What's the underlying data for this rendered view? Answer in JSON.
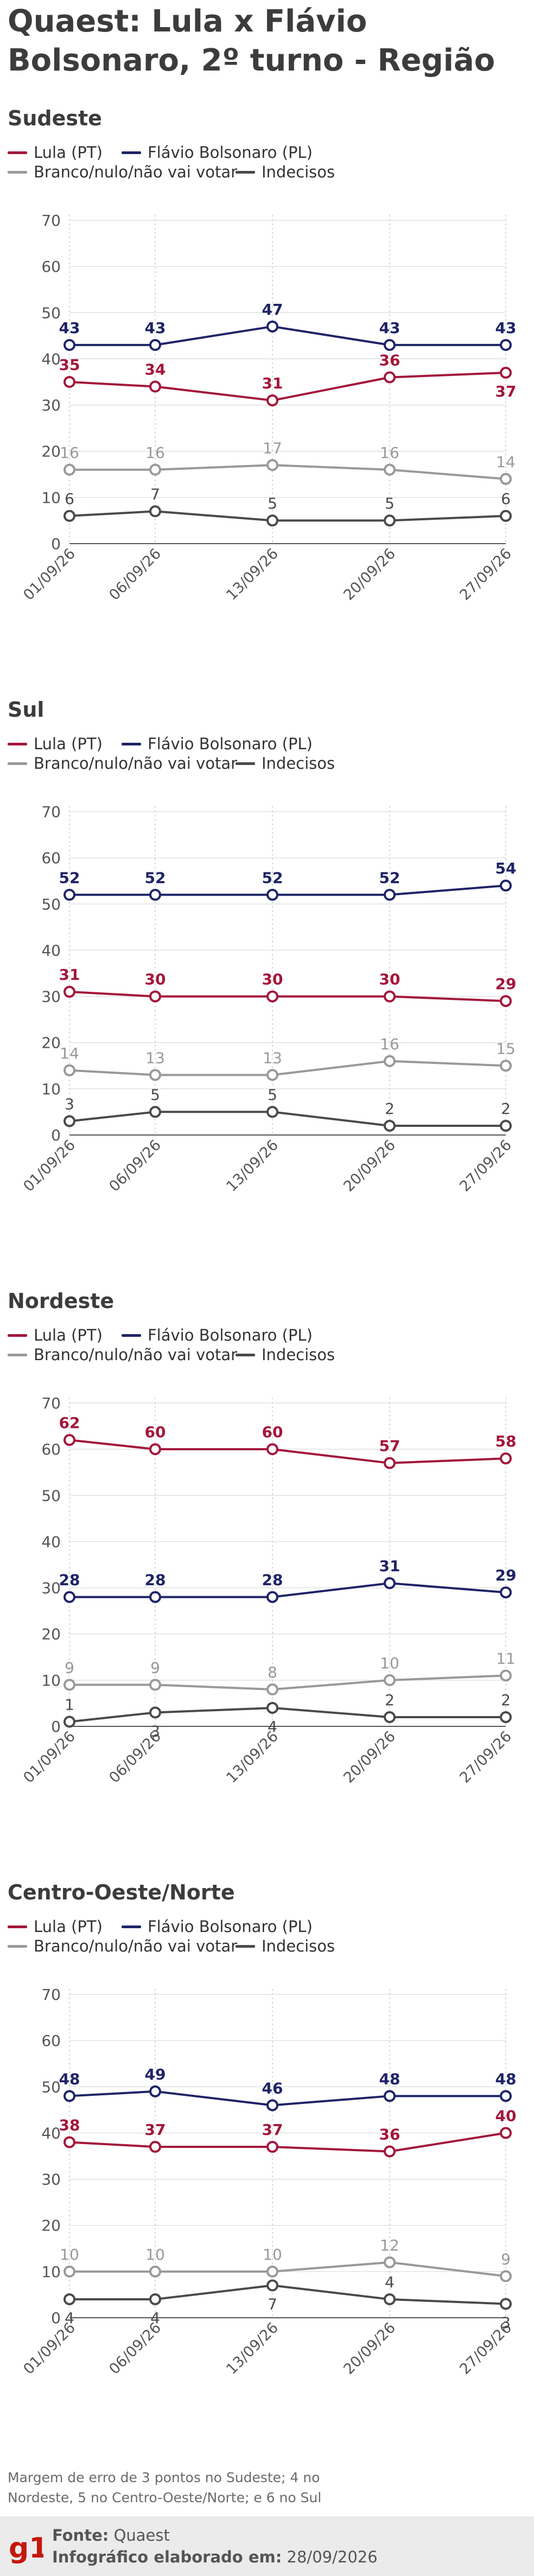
{
  "title": "Quaest: Lula x Flávio Bolsonaro, 2º turno - Região",
  "legend": [
    {
      "label": "Lula (PT)",
      "color": "#a3173a"
    },
    {
      "label": "Flávio Bolsonaro (PL)",
      "color": "#1e2466"
    },
    {
      "label": "Branco/nulo/não vai votar",
      "color": "#999999"
    },
    {
      "label": "Indecisos",
      "color": "#4a4a4a"
    }
  ],
  "chart_data": [
    {
      "type": "line",
      "title": "Sudeste",
      "x": [
        "01/09/26",
        "06/09/26",
        "13/09/26",
        "20/09/26",
        "27/09/26"
      ],
      "ylim": [
        0,
        70
      ],
      "yticks": [
        "0",
        "10",
        "20",
        "30",
        "40",
        "50",
        "60",
        "70"
      ],
      "series": [
        {
          "name": "Lula (PT)",
          "values": [
            35,
            34,
            31,
            36,
            37
          ]
        },
        {
          "name": "Flávio Bolsonaro (PL)",
          "values": [
            43,
            43,
            47,
            43,
            43
          ]
        },
        {
          "name": "Branco/nulo/não vai votar",
          "values": [
            16,
            16,
            17,
            16,
            14
          ]
        },
        {
          "name": "Indecisos",
          "values": [
            6,
            7,
            5,
            5,
            6
          ]
        }
      ]
    },
    {
      "type": "line",
      "title": "Sul",
      "x": [
        "01/09/26",
        "06/09/26",
        "13/09/26",
        "20/09/26",
        "27/09/26"
      ],
      "ylim": [
        0,
        70
      ],
      "yticks": [
        "0",
        "10",
        "20",
        "30",
        "40",
        "50",
        "60",
        "70"
      ],
      "series": [
        {
          "name": "Lula (PT)",
          "values": [
            31,
            30,
            30,
            30,
            29
          ]
        },
        {
          "name": "Flávio Bolsonaro (PL)",
          "values": [
            52,
            52,
            52,
            52,
            54
          ]
        },
        {
          "name": "Branco/nulo/não vai votar",
          "values": [
            14,
            13,
            13,
            16,
            15
          ]
        },
        {
          "name": "Indecisos",
          "values": [
            3,
            5,
            5,
            2,
            2
          ]
        }
      ]
    },
    {
      "type": "line",
      "title": "Nordeste",
      "x": [
        "01/09/26",
        "06/09/26",
        "13/09/26",
        "20/09/26",
        "27/09/26"
      ],
      "ylim": [
        0,
        70
      ],
      "yticks": [
        "0",
        "10",
        "20",
        "30",
        "40",
        "50",
        "60",
        "70"
      ],
      "series": [
        {
          "name": "Lula (PT)",
          "values": [
            62,
            60,
            60,
            57,
            58
          ]
        },
        {
          "name": "Flávio Bolsonaro (PL)",
          "values": [
            28,
            28,
            28,
            31,
            29
          ]
        },
        {
          "name": "Branco/nulo/não vai votar",
          "values": [
            9,
            9,
            8,
            10,
            11
          ]
        },
        {
          "name": "Indecisos",
          "values": [
            1,
            3,
            4,
            2,
            2
          ]
        }
      ]
    },
    {
      "type": "line",
      "title": "Centro-Oeste/Norte",
      "x": [
        "01/09/26",
        "06/09/26",
        "13/09/26",
        "20/09/26",
        "27/09/26"
      ],
      "ylim": [
        0,
        70
      ],
      "yticks": [
        "0",
        "10",
        "20",
        "30",
        "40",
        "50",
        "60",
        "70"
      ],
      "series": [
        {
          "name": "Lula (PT)",
          "values": [
            38,
            37,
            37,
            36,
            40
          ]
        },
        {
          "name": "Flávio Bolsonaro (PL)",
          "values": [
            48,
            49,
            46,
            48,
            48
          ]
        },
        {
          "name": "Branco/nulo/não vai votar",
          "values": [
            10,
            10,
            10,
            12,
            9
          ]
        },
        {
          "name": "Indecisos",
          "values": [
            4,
            4,
            7,
            4,
            3
          ]
        }
      ]
    }
  ],
  "footnote": "Margem de erro de 3 pontos no Sudeste; 4 no Nordeste, 5 no Centro-Oeste/Norte; e 6 no Sul",
  "footer": {
    "logo_text": "g1",
    "logo_color": "#c4170c",
    "source_label": "Fonte:",
    "source_value": "Quaest",
    "credit_label": "Infográfico elaborado em:",
    "credit_value": "28/09/2026"
  }
}
